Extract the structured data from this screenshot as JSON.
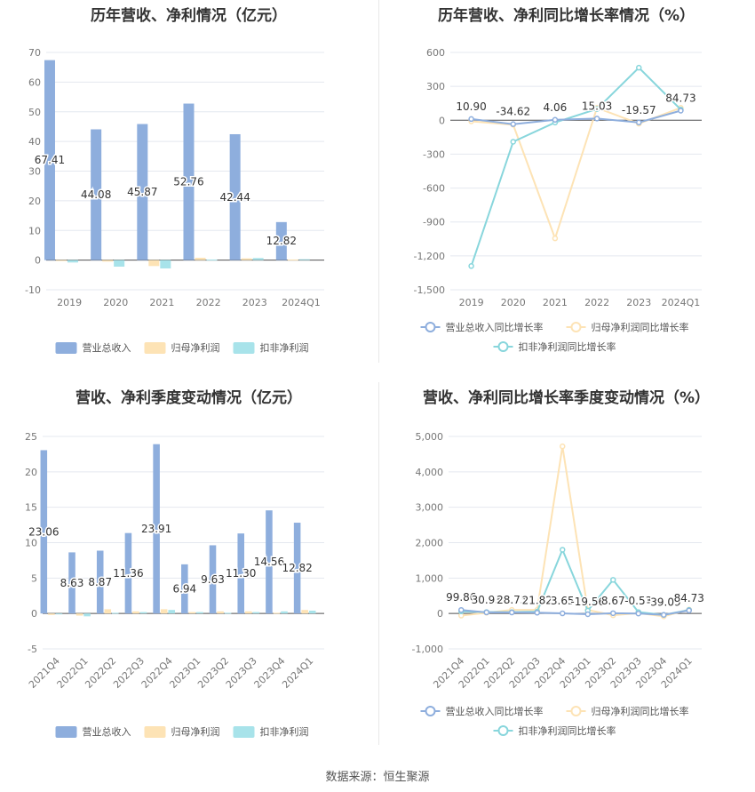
{
  "footer": "数据来源：恒生聚源",
  "colors": {
    "revenue": "#8eaedd",
    "net_profit": "#fde3b5",
    "deducted_profit": "#a8e3ea",
    "rev_line": "#8eaedd",
    "np_line": "#fde3b5",
    "dp_line": "#88d6dc",
    "grid": "#e4e8ef",
    "axis_text": "#777777"
  },
  "chart_data": [
    {
      "id": "annual-bar",
      "type": "bar",
      "title": "历年营收、净利情况（亿元）",
      "categories": [
        "2019",
        "2020",
        "2021",
        "2022",
        "2023",
        "2024Q1"
      ],
      "ylim": [
        -10,
        70
      ],
      "yticks": [
        -10,
        0,
        10,
        20,
        30,
        40,
        50,
        60,
        70
      ],
      "series": [
        {
          "name": "营业总收入",
          "values": [
            67.41,
            44.08,
            45.87,
            52.76,
            42.44,
            12.82
          ],
          "labels": [
            "67.41",
            "44.08",
            "45.87",
            "52.76",
            "42.44",
            "12.82"
          ]
        },
        {
          "name": "归母净利润",
          "values": [
            -0.3,
            -0.5,
            -2.0,
            0.8,
            0.6,
            0.2
          ]
        },
        {
          "name": "扣非净利润",
          "values": [
            -0.8,
            -2.2,
            -2.8,
            0.2,
            0.7,
            0.3
          ]
        }
      ],
      "legend": "bottom",
      "grid": true
    },
    {
      "id": "annual-line",
      "type": "line",
      "title": "历年营收、净利同比增长率情况（%）",
      "categories": [
        "2019",
        "2020",
        "2021",
        "2022",
        "2023",
        "2024Q1"
      ],
      "ylim": [
        -1500,
        600
      ],
      "yticks": [
        -1500,
        -1200,
        -900,
        -600,
        -300,
        0,
        300,
        600
      ],
      "ytick_labels": [
        "-1,500",
        "-1,200",
        "-900",
        "-600",
        "-300",
        "0",
        "300",
        "600"
      ],
      "series": [
        {
          "name": "营业总收入同比增长率",
          "values": [
            10.9,
            -34.62,
            4.06,
            15.03,
            -19.57,
            84.73
          ],
          "labels": [
            "10.90",
            "-34.62",
            "4.06",
            "15.03",
            "-19.57",
            "84.73"
          ]
        },
        {
          "name": "归母净利润同比增长率",
          "values": [
            -10,
            -40,
            -1045,
            110,
            -30,
            110
          ]
        },
        {
          "name": "扣非净利润同比增长率",
          "values": [
            -1290,
            -190,
            -20,
            100,
            465,
            95
          ]
        }
      ],
      "legend": "bottom",
      "grid": true
    },
    {
      "id": "quarter-bar",
      "type": "bar",
      "title": "营收、净利季度变动情况（亿元）",
      "categories": [
        "2021Q4",
        "2022Q1",
        "2022Q2",
        "2022Q3",
        "2022Q4",
        "2023Q1",
        "2023Q2",
        "2023Q3",
        "2023Q4",
        "2024Q1"
      ],
      "ylim": [
        -5,
        25
      ],
      "yticks": [
        -5,
        0,
        5,
        10,
        15,
        20,
        25
      ],
      "series": [
        {
          "name": "营业总收入",
          "values": [
            23.06,
            8.63,
            8.87,
            11.36,
            23.91,
            6.94,
            9.63,
            11.3,
            14.56,
            12.82
          ],
          "labels": [
            "23.06",
            "8.63",
            "8.87",
            "11.36",
            "23.91",
            "6.94",
            "9.63",
            "11.30",
            "14.56",
            "12.82"
          ]
        },
        {
          "name": "归母净利润",
          "values": [
            -0.2,
            -0.3,
            0.6,
            0.3,
            0.6,
            0.2,
            0.3,
            0.3,
            0.1,
            0.5
          ]
        },
        {
          "name": "扣非净利润",
          "values": [
            -0.1,
            -0.4,
            0.1,
            0.2,
            0.5,
            0.2,
            0.1,
            0.2,
            0.3,
            0.4
          ]
        }
      ],
      "legend": "bottom",
      "grid": true
    },
    {
      "id": "quarter-line",
      "type": "line",
      "title": "营收、净利同比增长率季度变动情况（%）",
      "categories": [
        "2021Q4",
        "2022Q1",
        "2022Q2",
        "2022Q3",
        "2022Q4",
        "2023Q1",
        "2023Q2",
        "2023Q3",
        "2023Q4",
        "2024Q1"
      ],
      "ylim": [
        -1000,
        5000
      ],
      "yticks": [
        -1000,
        0,
        1000,
        2000,
        3000,
        4000,
        5000
      ],
      "ytick_labels": [
        "-1,000",
        "0",
        "1,000",
        "2,000",
        "3,000",
        "4,000",
        "5,000"
      ],
      "series": [
        {
          "name": "营业总收入同比增长率",
          "values": [
            99.86,
            30.93,
            28.75,
            21.82,
            3.65,
            -19.56,
            8.67,
            -0.53,
            -39.09,
            84.73
          ],
          "labels": [
            "99.86",
            "30.93",
            "28.75",
            "21.82",
            "3.65",
            "-19.56",
            "8.67",
            "-0.53",
            "-39.09",
            "84.73"
          ]
        },
        {
          "name": "归母净利润同比增长率",
          "values": [
            -60,
            20,
            100,
            100,
            4720,
            100,
            -50,
            10,
            -80,
            110
          ]
        },
        {
          "name": "扣非净利润同比增长率",
          "values": [
            60,
            40,
            40,
            50,
            1800,
            80,
            950,
            40,
            -40,
            100
          ]
        }
      ],
      "legend": "bottom",
      "grid": true
    }
  ]
}
